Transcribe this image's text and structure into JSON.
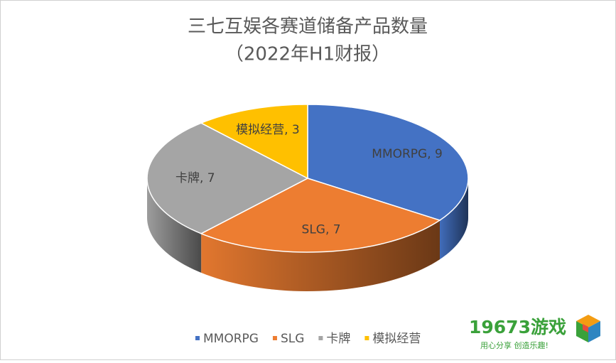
{
  "chart_data": {
    "type": "pie3d",
    "title": "三七互娱各赛道储备产品数量",
    "subtitle": "（2022年H1财报）",
    "categories": [
      "MMORPG",
      "SLG",
      "卡牌",
      "模拟经营"
    ],
    "values": [
      9,
      7,
      7,
      3
    ],
    "value_labels": [
      "MMORPG, 9",
      "SLG, 7",
      "卡牌, 7",
      "模拟经营, 3"
    ],
    "colors": [
      "#4472c4",
      "#ed7d31",
      "#a5a5a5",
      "#ffc000"
    ],
    "legend": "bottom"
  },
  "watermark": {
    "brand": "19673游戏",
    "slogan": "用心分享 创造乐趣!"
  }
}
